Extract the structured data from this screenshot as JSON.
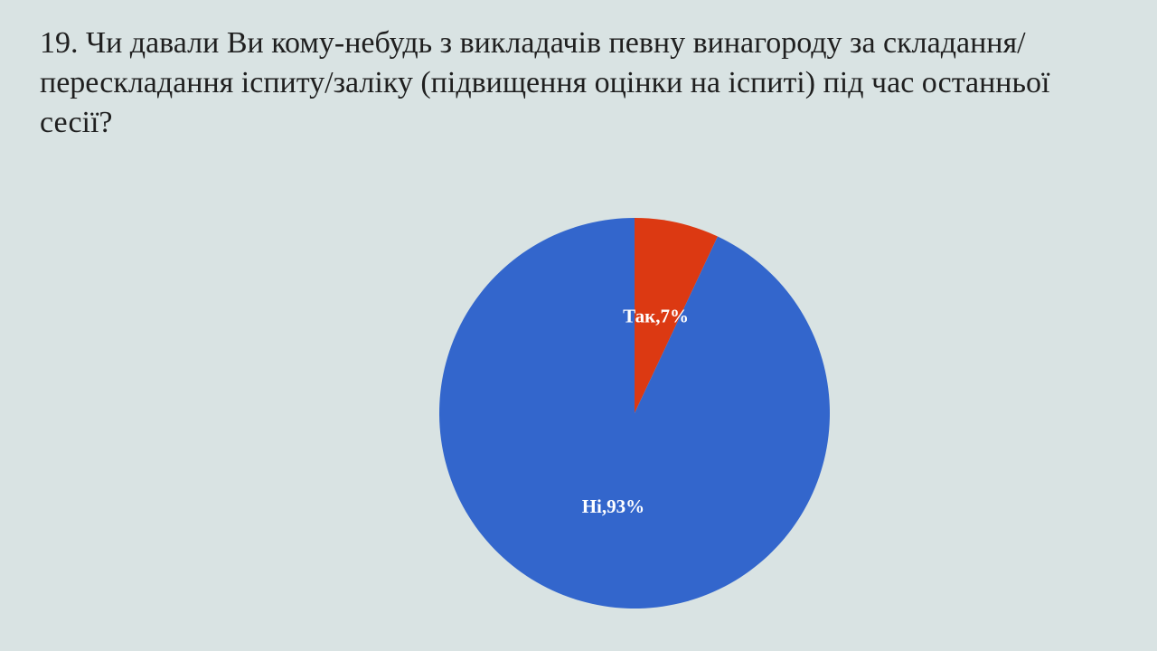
{
  "slide": {
    "title": "19. Чи давали Ви кому-небудь з викладачів певну винагороду за складання/перескладання іспиту/заліку (підвищення оцінки на іспиті) під час останньої сесії?"
  },
  "chart_data": {
    "type": "pie",
    "title": "",
    "legend": "none",
    "slices": [
      {
        "label": "Так",
        "value": 7,
        "display": "Так,7%",
        "color": "#dc3912"
      },
      {
        "label": "Ні",
        "value": 93,
        "display": "Ні,93%",
        "color": "#3366cc"
      }
    ]
  }
}
